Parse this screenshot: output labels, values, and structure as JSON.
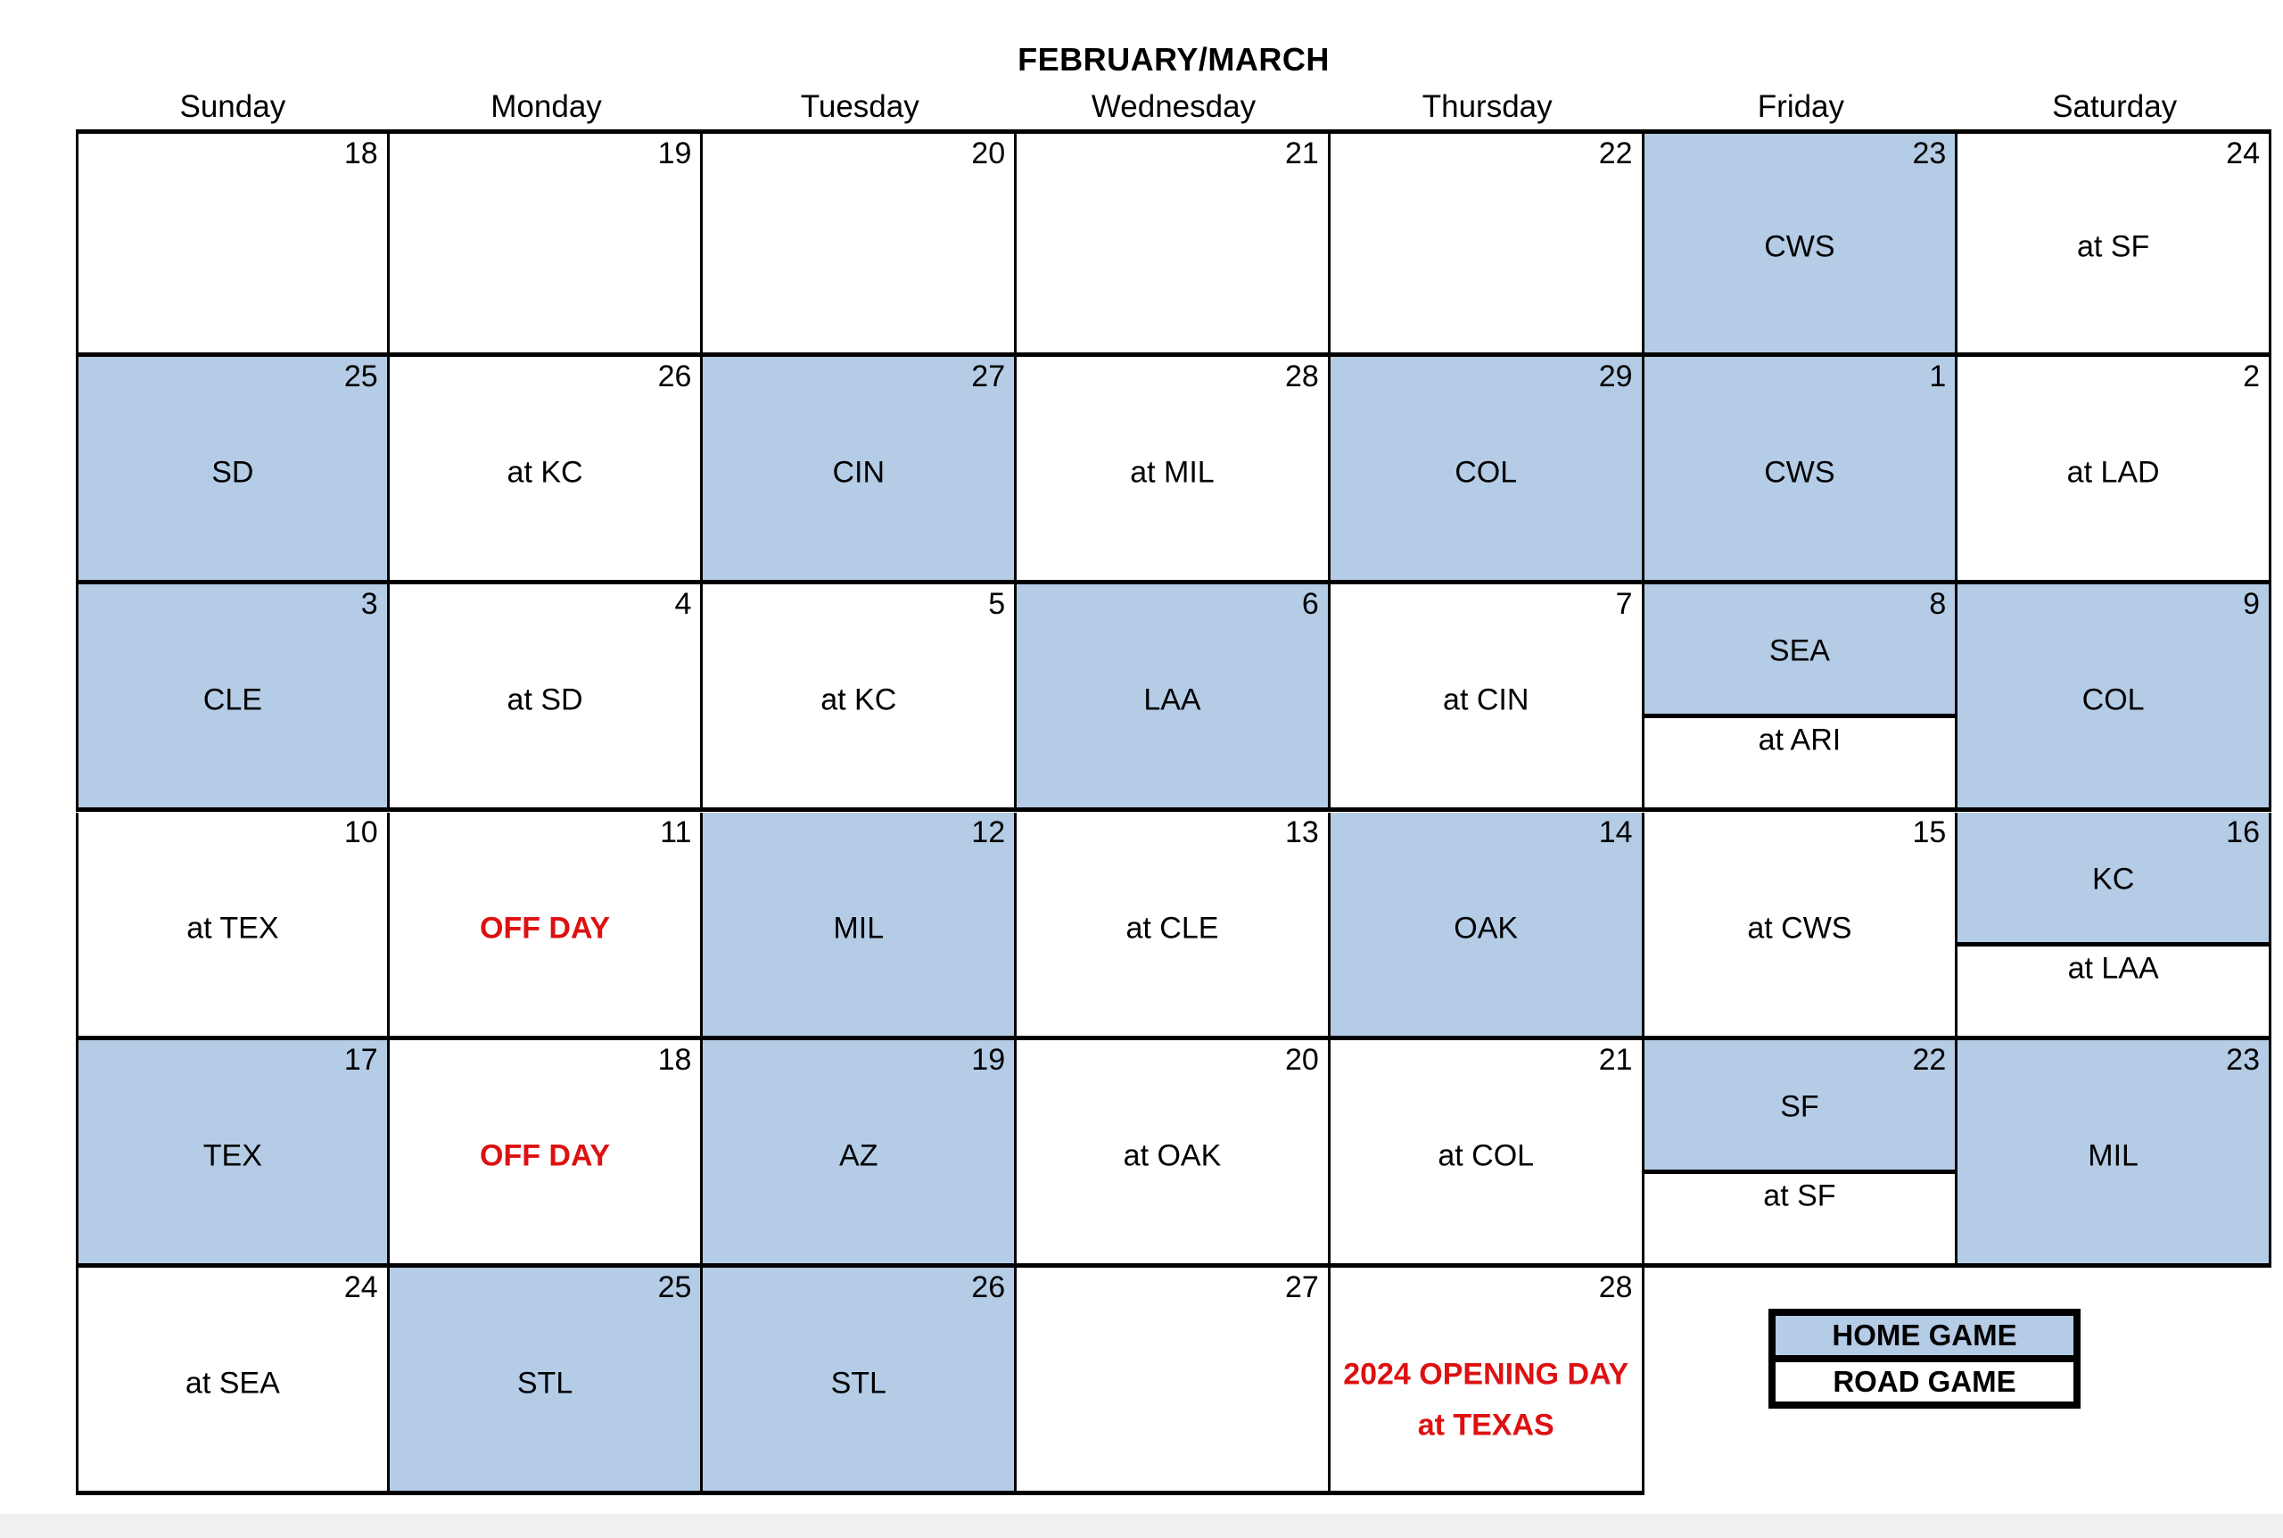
{
  "title": "FEBRUARY/MARCH",
  "weekdays": [
    "Sunday",
    "Monday",
    "Tuesday",
    "Wednesday",
    "Thursday",
    "Friday",
    "Saturday"
  ],
  "colors": {
    "home_fill": "#b4cce6",
    "road_fill": "#ffffff",
    "accent_red": "#dd1111",
    "grid_black": "#000000"
  },
  "legend": {
    "home_label": "HOME GAME",
    "road_label": "ROAD GAME"
  },
  "cells": [
    {
      "row": 0,
      "col": 0,
      "date": "18",
      "type": "empty"
    },
    {
      "row": 0,
      "col": 1,
      "date": "19",
      "type": "empty"
    },
    {
      "row": 0,
      "col": 2,
      "date": "20",
      "type": "empty"
    },
    {
      "row": 0,
      "col": 3,
      "date": "21",
      "type": "empty"
    },
    {
      "row": 0,
      "col": 4,
      "date": "22",
      "type": "empty"
    },
    {
      "row": 0,
      "col": 5,
      "date": "23",
      "type": "home",
      "label": "CWS"
    },
    {
      "row": 0,
      "col": 6,
      "date": "24",
      "type": "road",
      "label": "at SF"
    },
    {
      "row": 1,
      "col": 0,
      "date": "25",
      "type": "home",
      "label": "SD"
    },
    {
      "row": 1,
      "col": 1,
      "date": "26",
      "type": "road",
      "label": "at KC"
    },
    {
      "row": 1,
      "col": 2,
      "date": "27",
      "type": "home",
      "label": "CIN"
    },
    {
      "row": 1,
      "col": 3,
      "date": "28",
      "type": "road",
      "label": "at MIL"
    },
    {
      "row": 1,
      "col": 4,
      "date": "29",
      "type": "home",
      "label": "COL"
    },
    {
      "row": 1,
      "col": 5,
      "date": "1",
      "type": "home",
      "label": "CWS"
    },
    {
      "row": 1,
      "col": 6,
      "date": "2",
      "type": "road",
      "label": "at LAD"
    },
    {
      "row": 2,
      "col": 0,
      "date": "3",
      "type": "home",
      "label": "CLE"
    },
    {
      "row": 2,
      "col": 1,
      "date": "4",
      "type": "road",
      "label": "at SD"
    },
    {
      "row": 2,
      "col": 2,
      "date": "5",
      "type": "road",
      "label": "at KC"
    },
    {
      "row": 2,
      "col": 3,
      "date": "6",
      "type": "home",
      "label": "LAA"
    },
    {
      "row": 2,
      "col": 4,
      "date": "7",
      "type": "road",
      "label": "at CIN"
    },
    {
      "row": 2,
      "col": 5,
      "date": "8",
      "type": "split",
      "home_label": "SEA",
      "road_label": "at ARI"
    },
    {
      "row": 2,
      "col": 6,
      "date": "9",
      "type": "home",
      "label": "COL"
    },
    {
      "row": 3,
      "col": 0,
      "date": "10",
      "type": "road",
      "label": "at TEX"
    },
    {
      "row": 3,
      "col": 1,
      "date": "11",
      "type": "off",
      "label": "OFF DAY"
    },
    {
      "row": 3,
      "col": 2,
      "date": "12",
      "type": "home",
      "label": "MIL"
    },
    {
      "row": 3,
      "col": 3,
      "date": "13",
      "type": "road",
      "label": "at CLE"
    },
    {
      "row": 3,
      "col": 4,
      "date": "14",
      "type": "home",
      "label": "OAK"
    },
    {
      "row": 3,
      "col": 5,
      "date": "15",
      "type": "road",
      "label": "at CWS"
    },
    {
      "row": 3,
      "col": 6,
      "date": "16",
      "type": "split",
      "home_label": "KC",
      "road_label": "at LAA"
    },
    {
      "row": 4,
      "col": 0,
      "date": "17",
      "type": "home",
      "label": "TEX"
    },
    {
      "row": 4,
      "col": 1,
      "date": "18",
      "type": "off",
      "label": "OFF DAY"
    },
    {
      "row": 4,
      "col": 2,
      "date": "19",
      "type": "home",
      "label": "AZ"
    },
    {
      "row": 4,
      "col": 3,
      "date": "20",
      "type": "road",
      "label": "at OAK"
    },
    {
      "row": 4,
      "col": 4,
      "date": "21",
      "type": "road",
      "label": "at COL"
    },
    {
      "row": 4,
      "col": 5,
      "date": "22",
      "type": "split",
      "home_label": "SF",
      "road_label": "at SF"
    },
    {
      "row": 4,
      "col": 6,
      "date": "23",
      "type": "home",
      "label": "MIL"
    },
    {
      "row": 5,
      "col": 0,
      "date": "24",
      "type": "road",
      "label": "at SEA"
    },
    {
      "row": 5,
      "col": 1,
      "date": "25",
      "type": "home",
      "label": "STL"
    },
    {
      "row": 5,
      "col": 2,
      "date": "26",
      "type": "home",
      "label": "STL"
    },
    {
      "row": 5,
      "col": 3,
      "date": "27",
      "type": "empty"
    },
    {
      "row": 5,
      "col": 4,
      "date": "28",
      "type": "opening",
      "line1": "2024 OPENING DAY",
      "line2": "at TEXAS"
    }
  ]
}
